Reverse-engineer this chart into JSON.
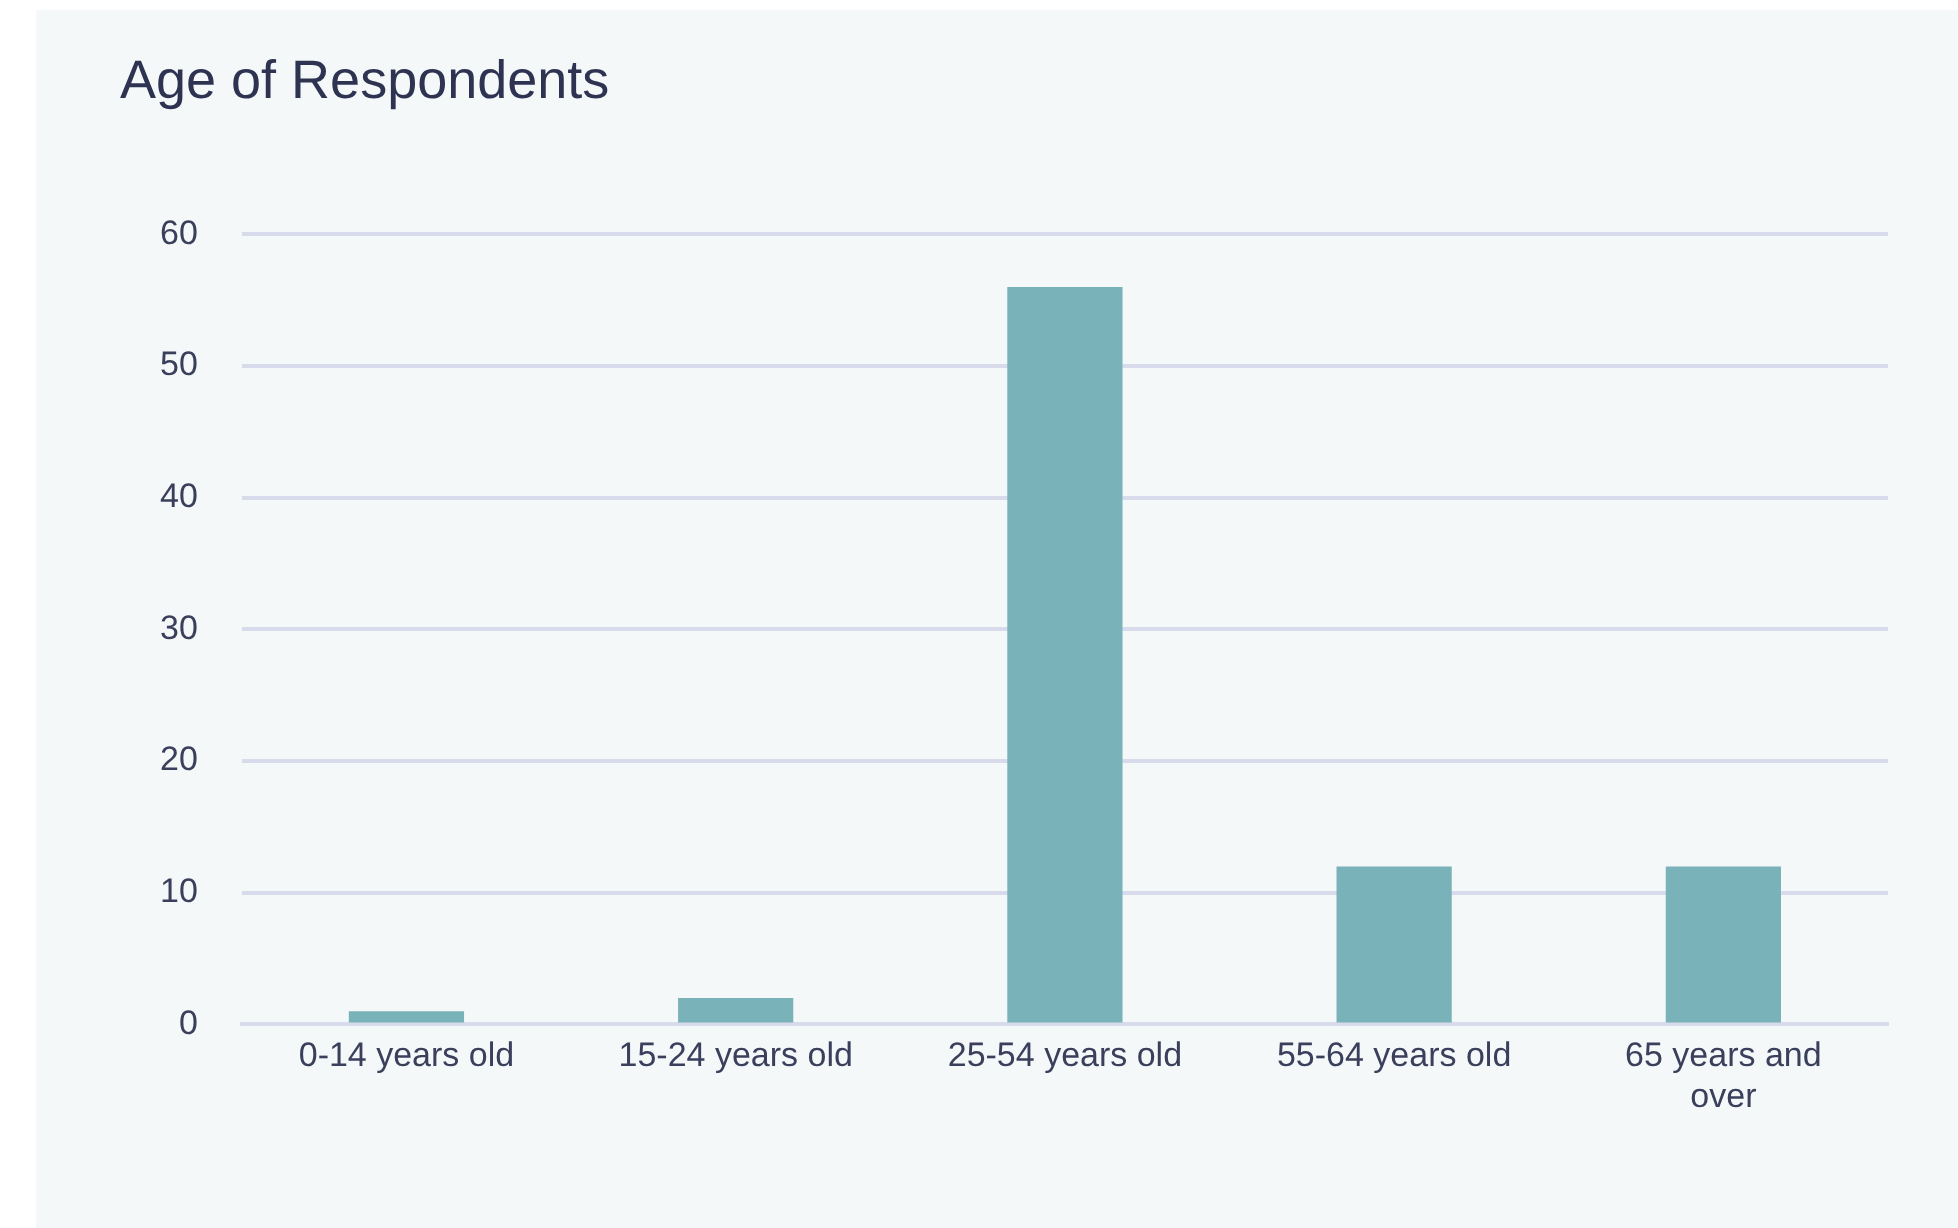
{
  "chart_data": {
    "type": "bar",
    "title": "Age of Respondents",
    "categories": [
      "0-14 years old",
      "15-24 years old",
      "25-54 years old",
      "55-64 years old",
      "65 years and over"
    ],
    "values": [
      1,
      2,
      56,
      12,
      12
    ],
    "color": "#7ab2ba",
    "ylim": [
      0,
      60
    ],
    "yticks": [
      0,
      10,
      20,
      30,
      40,
      50,
      60
    ],
    "grid": "y"
  }
}
